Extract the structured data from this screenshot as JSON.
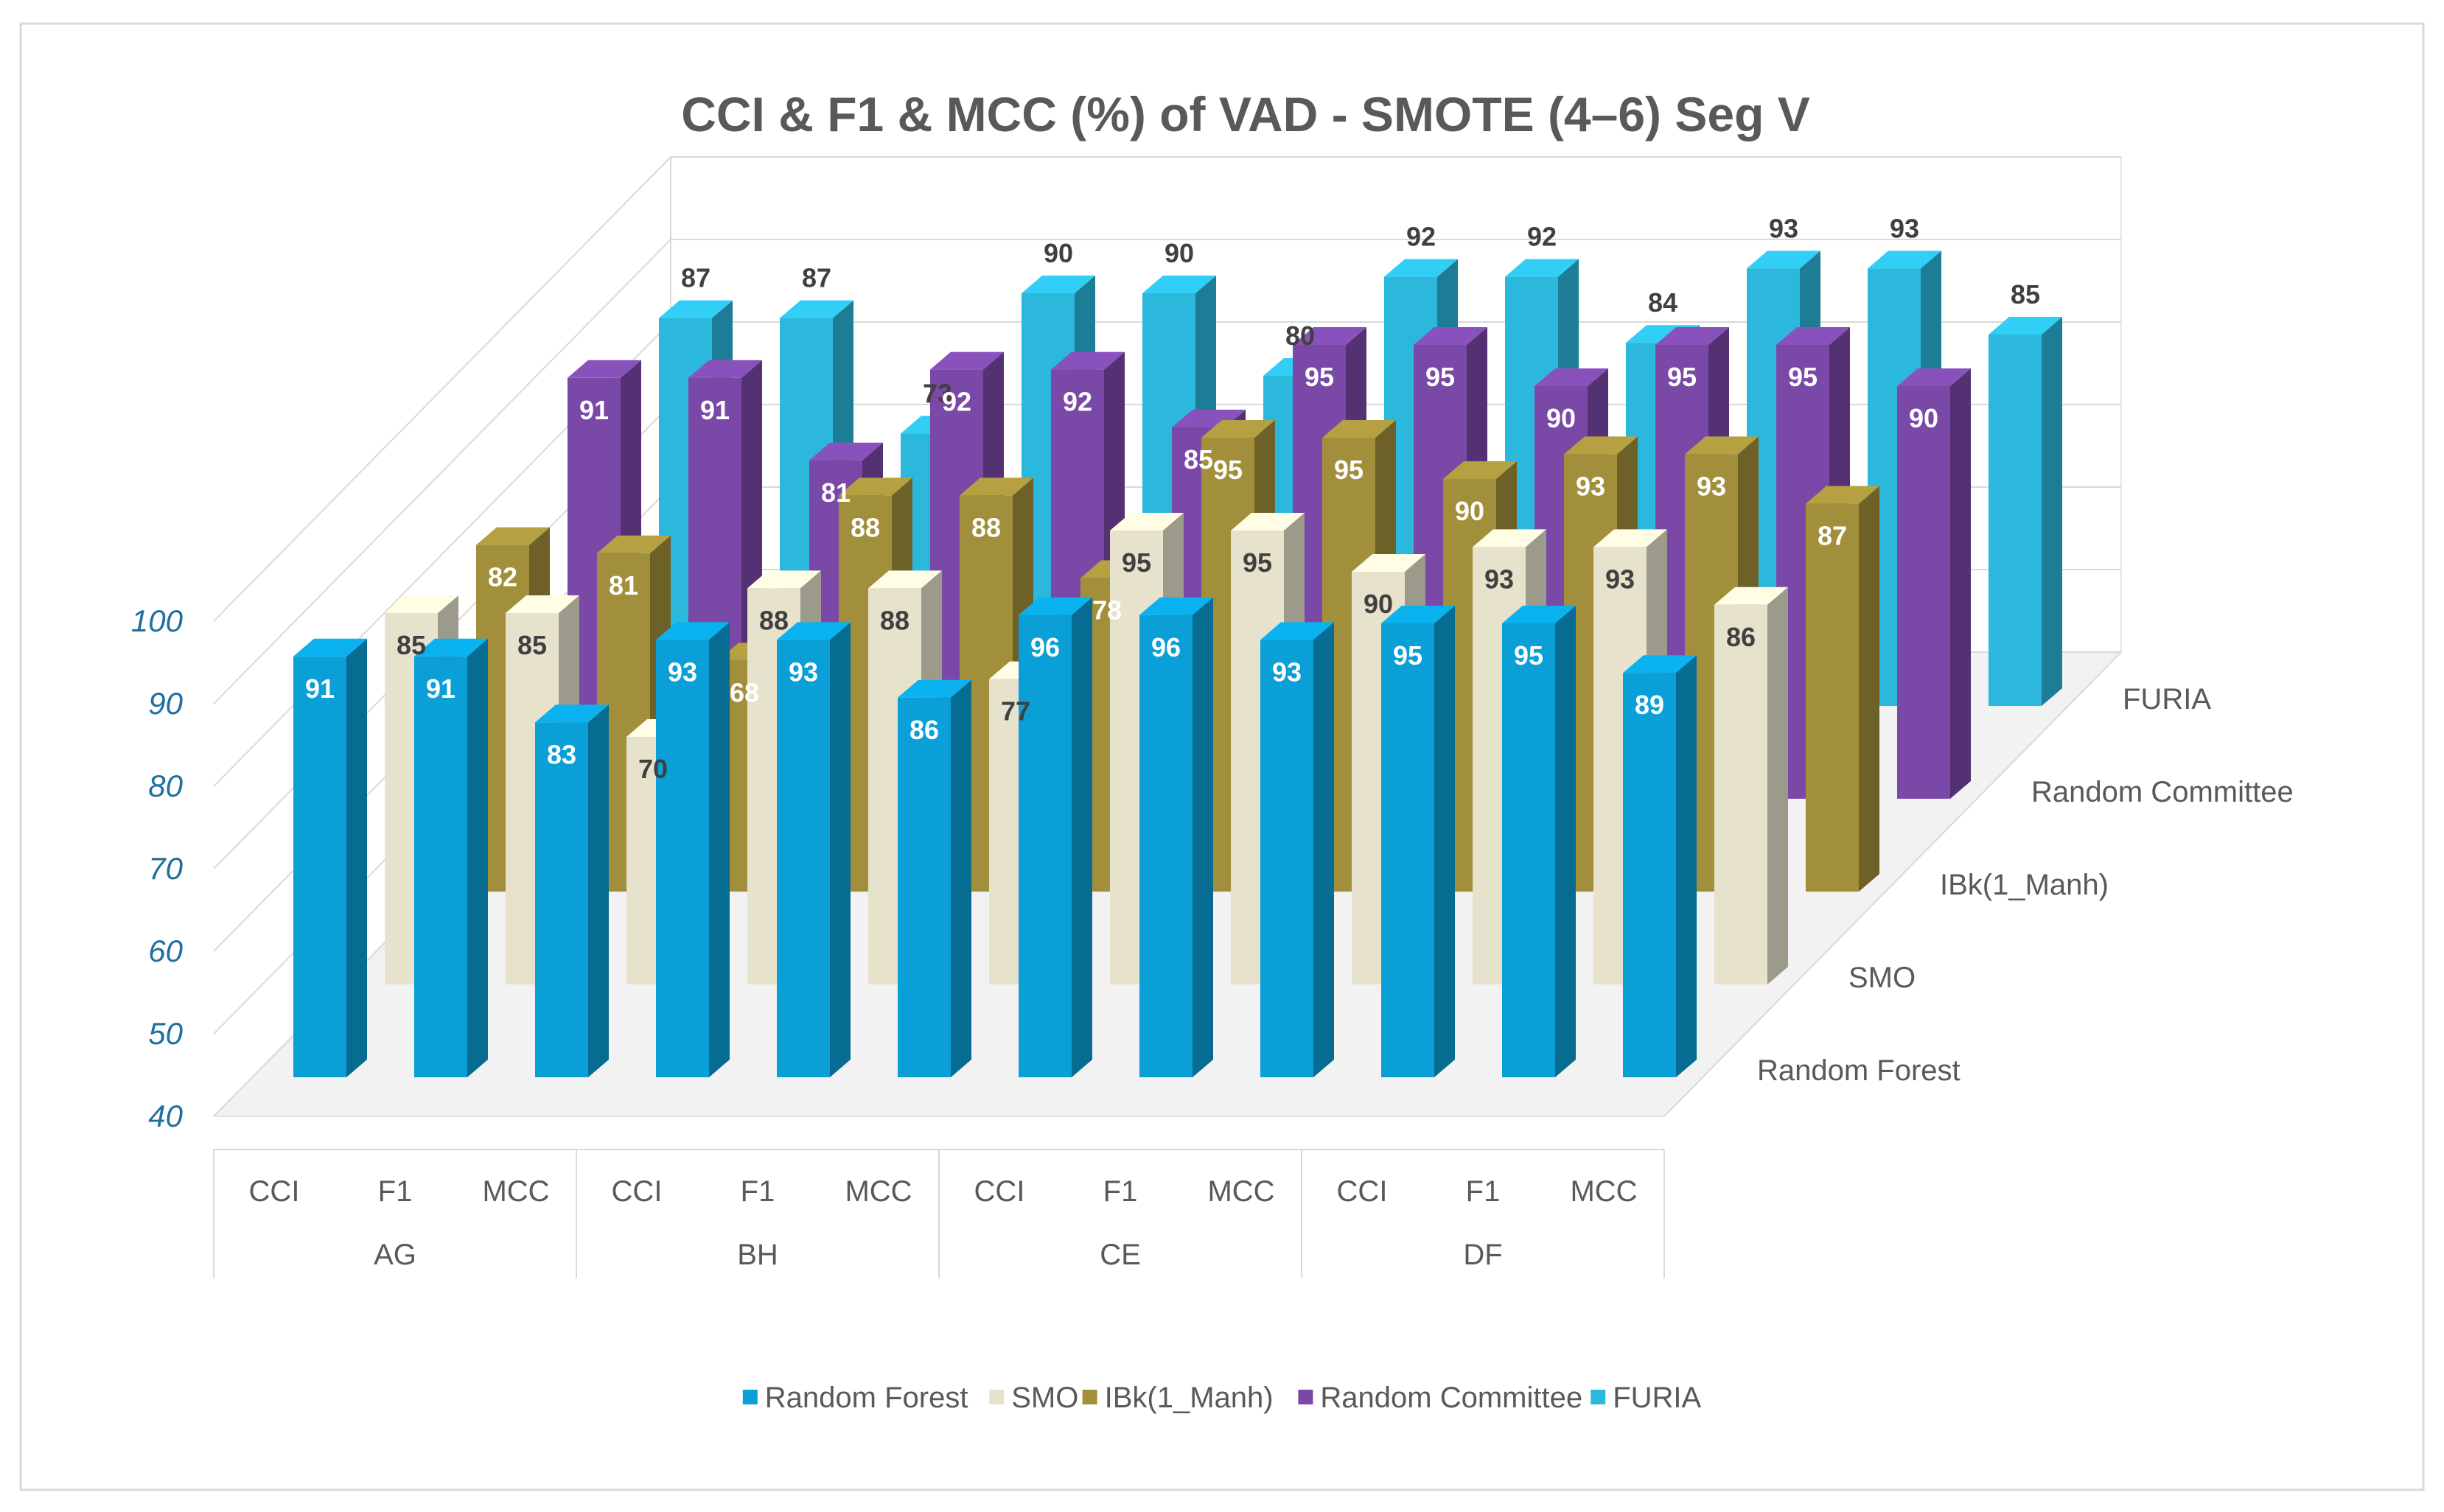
{
  "chart_data": {
    "type": "bar",
    "title": "CCI & F1 & MCC (%) of VAD - SMOTE (4–6) Seg V",
    "groups": [
      "AG",
      "BH",
      "CE",
      "DF"
    ],
    "categories": [
      "CCI",
      "F1",
      "MCC",
      "CCI",
      "F1",
      "MCC",
      "CCI",
      "F1",
      "MCC",
      "CCI",
      "F1",
      "MCC"
    ],
    "ylim": [
      40,
      100
    ],
    "yticks": [
      "40",
      "50",
      "60",
      "70",
      "80",
      "90",
      "100"
    ],
    "xlabel": "",
    "ylabel": "",
    "legend_position": "bottom",
    "series": [
      {
        "name": "Random Forest",
        "color": "#0a9fd6",
        "values": [
          91,
          91,
          83,
          93,
          93,
          86,
          96,
          96,
          93,
          95,
          95,
          89
        ]
      },
      {
        "name": "SMO",
        "color": "#e6e2cb",
        "values": [
          85,
          85,
          70,
          88,
          88,
          77,
          95,
          95,
          90,
          93,
          93,
          86
        ]
      },
      {
        "name": "IBk(1_Manh)",
        "color": "#a28f3b",
        "values": [
          82,
          81,
          68,
          88,
          88,
          78,
          95,
          95,
          90,
          93,
          93,
          87
        ]
      },
      {
        "name": "Random Committee",
        "color": "#7a48a7",
        "values": [
          91,
          91,
          81,
          92,
          92,
          85,
          95,
          95,
          90,
          95,
          95,
          90
        ]
      },
      {
        "name": "FURIA",
        "color": "#2cb8dc",
        "values": [
          87,
          87,
          73,
          90,
          90,
          80,
          92,
          92,
          84,
          93,
          93,
          85
        ]
      }
    ]
  }
}
